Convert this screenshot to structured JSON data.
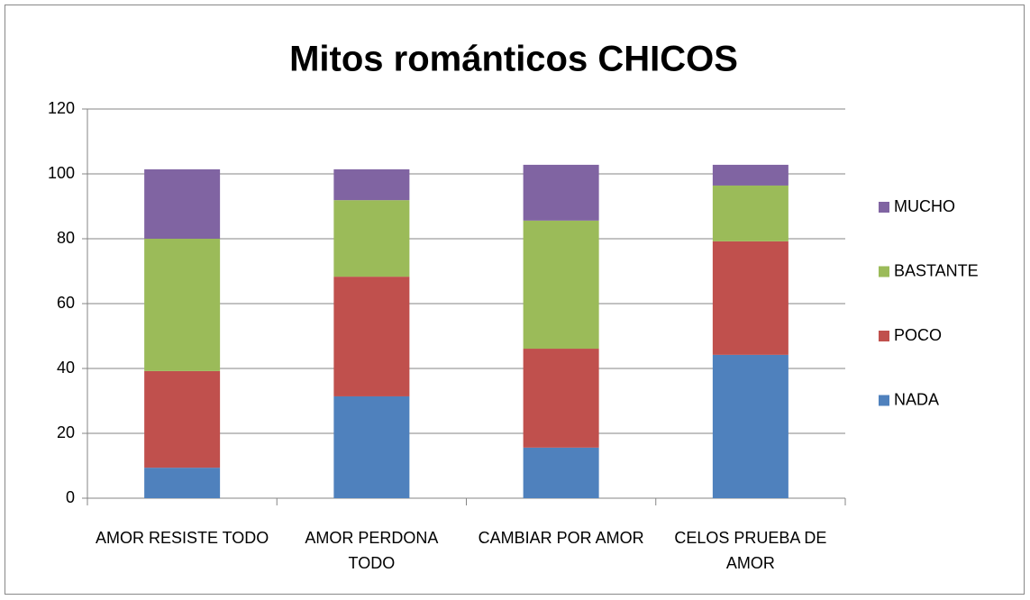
{
  "chart_data": {
    "type": "stacked_bar",
    "title": "Mitos románticos CHICOS",
    "categories": [
      "AMOR RESISTE TODO",
      "AMOR PERDONA TODO",
      "CAMBIAR POR AMOR",
      "CELOS PRUEBA DE AMOR"
    ],
    "series": [
      {
        "name": "NADA",
        "color": "#4f81bd",
        "values": [
          9.4,
          31.4,
          15.6,
          44.2
        ]
      },
      {
        "name": "POCO",
        "color": "#c0504d",
        "values": [
          29.8,
          36.9,
          30.5,
          35.0
        ]
      },
      {
        "name": "BASTANTE",
        "color": "#9bbb59",
        "values": [
          40.8,
          23.6,
          39.5,
          17.2
        ]
      },
      {
        "name": "MUCHO",
        "color": "#8064a2",
        "values": [
          21.4,
          9.5,
          17.2,
          6.4
        ]
      }
    ],
    "ylim": [
      0,
      120
    ],
    "yticks": [
      0,
      20,
      40,
      60,
      80,
      100,
      120
    ],
    "grid": true,
    "legend": "right"
  }
}
